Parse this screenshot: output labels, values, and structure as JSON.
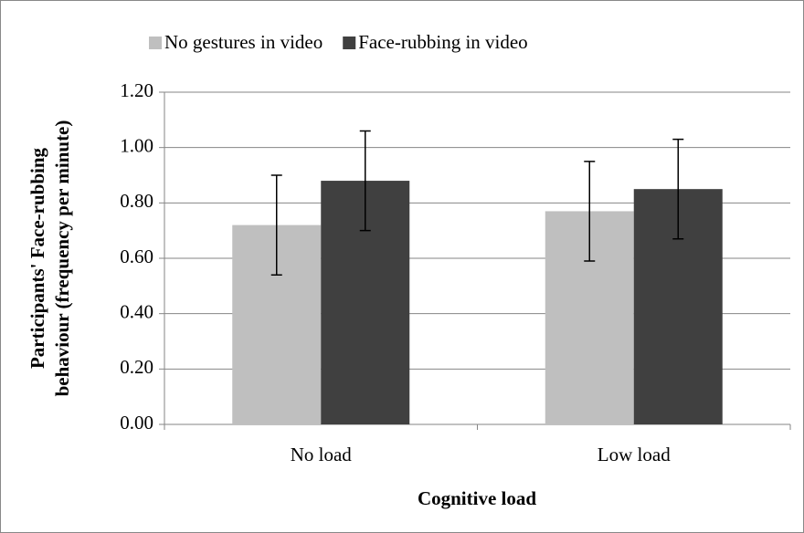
{
  "chart_data": {
    "type": "bar",
    "categories": [
      "No load",
      "Low load"
    ],
    "series": [
      {
        "name": "No gestures in video",
        "color": "#bfbfbf",
        "values": [
          0.72,
          0.77
        ],
        "errors": [
          0.18,
          0.18
        ]
      },
      {
        "name": "Face-rubbing in video",
        "color": "#404040",
        "values": [
          0.88,
          0.85
        ],
        "errors": [
          0.18,
          0.18
        ]
      }
    ],
    "xlabel": "Cognitive load",
    "ylabel": [
      "Participants' Face-rubbing",
      "behaviour (frequency per minute)"
    ],
    "ylim": [
      0,
      1.2
    ],
    "yticks": [
      {
        "value": 0,
        "label": "0.00"
      },
      {
        "value": 0.2,
        "label": "0.20"
      },
      {
        "value": 0.4,
        "label": "0.40"
      },
      {
        "value": 0.6,
        "label": "0.60"
      },
      {
        "value": 0.8,
        "label": "0.80"
      },
      {
        "value": 1.0,
        "label": "1.00"
      },
      {
        "value": 1.2,
        "label": "1.20"
      }
    ],
    "grid": true,
    "legend": "top"
  }
}
